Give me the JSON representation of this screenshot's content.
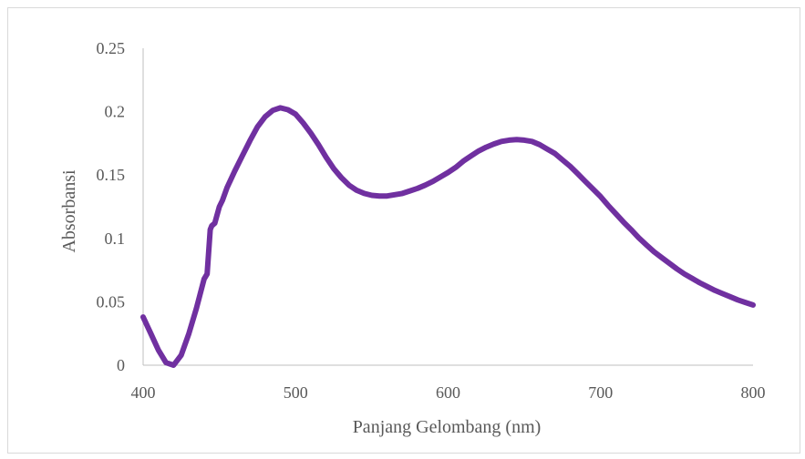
{
  "chart_data": {
    "type": "line",
    "title": "",
    "xlabel": "Panjang Gelombang (nm)",
    "ylabel": "Absorbansi",
    "xlim": [
      400,
      800
    ],
    "ylim": [
      0,
      0.25
    ],
    "x_ticks": [
      400,
      500,
      600,
      700,
      800
    ],
    "x_tick_labels": [
      "400",
      "500",
      "600",
      "700",
      "800"
    ],
    "y_ticks": [
      0,
      0.05,
      0.1,
      0.15,
      0.2,
      0.25
    ],
    "y_tick_labels": [
      "0",
      "0.05",
      "0.1",
      "0.15",
      "0.2",
      "0.25"
    ],
    "grid": false,
    "legend": "none",
    "series": [
      {
        "color": "#7030a0",
        "x": [
          400,
          405,
          410,
          415,
          420,
          425,
          430,
          435,
          440,
          442,
          444,
          445,
          447,
          450,
          452,
          455,
          460,
          465,
          470,
          475,
          480,
          485,
          490,
          495,
          500,
          505,
          510,
          515,
          520,
          525,
          530,
          535,
          540,
          545,
          550,
          555,
          560,
          565,
          570,
          575,
          580,
          585,
          590,
          595,
          600,
          605,
          610,
          615,
          620,
          625,
          630,
          635,
          640,
          645,
          650,
          655,
          660,
          665,
          670,
          675,
          680,
          685,
          690,
          695,
          700,
          705,
          710,
          715,
          720,
          725,
          730,
          735,
          740,
          745,
          750,
          755,
          760,
          765,
          770,
          775,
          780,
          785,
          790,
          795,
          800
        ],
        "y": [
          0.038,
          0.025,
          0.012,
          0.002,
          0.0,
          0.008,
          0.025,
          0.045,
          0.068,
          0.072,
          0.107,
          0.11,
          0.112,
          0.125,
          0.13,
          0.14,
          0.153,
          0.165,
          0.177,
          0.188,
          0.196,
          0.201,
          0.203,
          0.2015,
          0.198,
          0.191,
          0.183,
          0.174,
          0.164,
          0.155,
          0.148,
          0.142,
          0.138,
          0.1355,
          0.134,
          0.1335,
          0.1335,
          0.1345,
          0.1355,
          0.1375,
          0.1395,
          0.142,
          0.145,
          0.1485,
          0.152,
          0.156,
          0.161,
          0.165,
          0.169,
          0.172,
          0.1745,
          0.1765,
          0.1775,
          0.178,
          0.1775,
          0.1765,
          0.174,
          0.1705,
          0.167,
          0.162,
          0.157,
          0.151,
          0.145,
          0.139,
          0.133,
          0.126,
          0.1195,
          0.113,
          0.107,
          0.1005,
          0.095,
          0.0895,
          0.085,
          0.0805,
          0.076,
          0.072,
          0.0685,
          0.065,
          0.062,
          0.059,
          0.0565,
          0.054,
          0.0515,
          0.0495,
          0.0475
        ]
      }
    ]
  }
}
